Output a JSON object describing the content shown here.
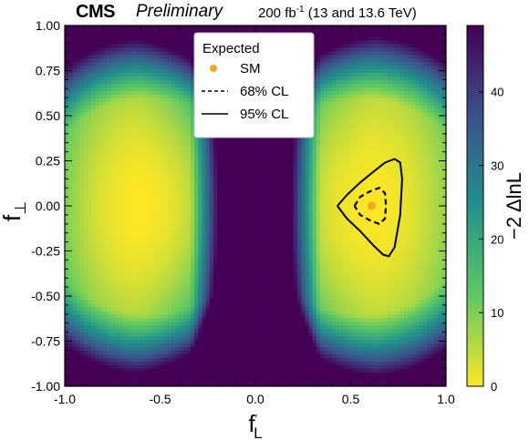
{
  "header": {
    "experiment": "CMS",
    "status": "Preliminary",
    "lumi_prefix": "200 fb",
    "lumi_exponent": "-1",
    "lumi_suffix": " (13 and 13.6 TeV)"
  },
  "chart_data": {
    "type": "heatmap",
    "xlabel": "f",
    "xlabel_sub": "L",
    "xlabel_prime": "′",
    "ylabel": "f",
    "ylabel_sub": "⊥",
    "zlabel": "−2 ΔlnL",
    "xlim": [
      -1.0,
      1.0
    ],
    "ylim": [
      -1.0,
      1.0
    ],
    "zlim": [
      0,
      49
    ],
    "x_ticks": [
      "-1.0",
      "-0.5",
      "0.0",
      "0.5",
      "1.0"
    ],
    "x_tick_values": [
      -1.0,
      -0.5,
      0.0,
      0.5,
      1.0
    ],
    "y_ticks": [
      "1.00",
      "0.75",
      "0.50",
      "0.25",
      "0.00",
      "-0.25",
      "-0.50",
      "-0.75",
      "-1.00"
    ],
    "y_tick_values": [
      1.0,
      0.75,
      0.5,
      0.25,
      0.0,
      -0.25,
      -0.5,
      -0.75,
      -1.0
    ],
    "z_ticks": [
      "0",
      "10",
      "20",
      "30",
      "40"
    ],
    "z_tick_values": [
      0,
      10,
      20,
      30,
      40
    ],
    "colormap": "viridis_reversed",
    "colormap_colors": [
      "#fde725",
      "#5ec962",
      "#21918c",
      "#3b528b",
      "#440154"
    ],
    "best_fit_point": {
      "x": 0.61,
      "y": 0.0,
      "color": "#f5a623"
    },
    "contour_68": {
      "x": [
        0.52,
        0.55,
        0.6,
        0.65,
        0.68,
        0.685,
        0.68,
        0.65,
        0.6,
        0.55,
        0.52
      ],
      "y": [
        0.0,
        0.05,
        0.08,
        0.1,
        0.07,
        0.0,
        -0.07,
        -0.1,
        -0.08,
        -0.05,
        0.0
      ]
    },
    "contour_95": {
      "x": [
        0.43,
        0.48,
        0.55,
        0.62,
        0.68,
        0.73,
        0.76,
        0.77,
        0.76,
        0.73,
        0.7,
        0.67,
        0.62,
        0.55,
        0.48,
        0.43
      ],
      "y": [
        0.0,
        0.06,
        0.13,
        0.19,
        0.24,
        0.26,
        0.24,
        0.15,
        -0.05,
        -0.23,
        -0.28,
        -0.27,
        -0.22,
        -0.14,
        -0.07,
        0.0
      ]
    },
    "legend": {
      "title": "Expected",
      "entries": [
        {
          "label": "SM",
          "style": "marker"
        },
        {
          "label": "68% CL",
          "style": "dashed"
        },
        {
          "label": "95% CL",
          "style": "solid"
        }
      ],
      "position": "top-center"
    }
  }
}
